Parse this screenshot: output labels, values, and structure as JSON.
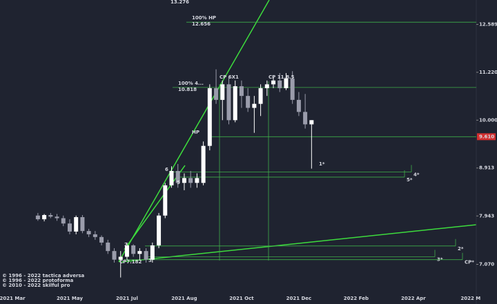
{
  "chart_data": {
    "type": "candlestick",
    "log_scale": true,
    "ylim": [
      6.6,
      13.35
    ],
    "yticks": [
      12.589,
      {
        "value": 11.22,
        "label": "11.220"
      },
      {
        "value": 10,
        "label": "10.000"
      },
      8.913,
      7.943,
      {
        "value": 7.07,
        "label": "7.070"
      }
    ],
    "categories": [
      "2021 Mar",
      null,
      null,
      null,
      null,
      null,
      null,
      null,
      null,
      "2021 May",
      null,
      null,
      null,
      null,
      null,
      null,
      null,
      null,
      "2021 Jul",
      null,
      null,
      null,
      null,
      null,
      null,
      null,
      null,
      "2021 Aug",
      null,
      null,
      null,
      null,
      null,
      null,
      null,
      null,
      "2021 Oct",
      null,
      null,
      null,
      null,
      null,
      null,
      null,
      null,
      "2021 Dec",
      null,
      null,
      null,
      null,
      null,
      null,
      null,
      null,
      "2022 Feb",
      null,
      null,
      null,
      null,
      null,
      null,
      null,
      null,
      "2022 Apr",
      null,
      null,
      null,
      null,
      null,
      null,
      null,
      null,
      "2022 M",
      null
    ],
    "open": [
      null,
      null,
      null,
      null,
      7.95,
      7.88,
      7.96,
      7.93,
      7.9,
      7.8,
      7.65,
      7.92,
      7.66,
      7.6,
      7.55,
      7.45,
      7.3,
      7.15,
      7.2,
      7.4,
      7.25,
      7.3,
      7.15,
      7.4,
      7.95,
      8.55,
      8.85,
      8.6,
      8.7,
      8.6,
      8.6,
      9.4,
      10.8,
      10.5,
      10.9,
      10.0,
      10.85,
      10.6,
      10.3,
      10.4,
      10.8,
      10.9,
      11.0,
      10.8,
      11.05,
      10.5,
      10.2,
      9.9,
      null,
      null,
      null,
      null,
      null,
      null,
      null,
      null,
      null,
      null,
      null,
      null,
      null,
      null,
      null,
      null,
      null,
      null,
      null,
      null,
      null,
      null,
      null,
      null,
      null,
      null
    ],
    "high": [
      null,
      null,
      null,
      null,
      8.0,
      7.98,
      8.0,
      7.98,
      7.95,
      7.88,
      7.95,
      7.96,
      7.7,
      7.66,
      7.58,
      7.5,
      7.35,
      7.3,
      7.45,
      7.42,
      7.35,
      7.35,
      7.45,
      8.0,
      8.6,
      8.95,
      9.0,
      8.8,
      8.85,
      8.8,
      9.5,
      10.9,
      11.3,
      11.0,
      11.1,
      11.0,
      11.0,
      10.8,
      10.6,
      10.9,
      11.0,
      11.1,
      11.2,
      11.2,
      11.25,
      10.7,
      10.65,
      10.0,
      null,
      null,
      null,
      null,
      null,
      null,
      null,
      null,
      null,
      null,
      null,
      null,
      null,
      null,
      null,
      null,
      null,
      null,
      null,
      null,
      null,
      null,
      null,
      null,
      null,
      null
    ],
    "low": [
      null,
      null,
      null,
      null,
      7.85,
      7.84,
      7.9,
      7.85,
      7.75,
      7.6,
      7.6,
      7.62,
      7.55,
      7.5,
      7.4,
      7.25,
      7.1,
      6.85,
      7.15,
      7.2,
      7.15,
      7.1,
      7.1,
      7.35,
      7.9,
      8.5,
      8.5,
      8.45,
      8.5,
      8.5,
      8.55,
      9.3,
      10.4,
      10.0,
      9.9,
      9.95,
      10.3,
      10.2,
      9.7,
      10.1,
      10.6,
      10.8,
      10.7,
      10.75,
      10.4,
      10.1,
      9.8,
      8.9,
      null,
      null,
      null,
      null,
      null,
      null,
      null,
      null,
      null,
      null,
      null,
      null,
      null,
      null,
      null,
      null,
      null,
      null,
      null,
      null,
      null,
      null,
      null,
      null,
      null,
      null
    ],
    "close": [
      null,
      null,
      null,
      null,
      7.88,
      7.96,
      7.93,
      7.9,
      7.8,
      7.65,
      7.92,
      7.66,
      7.6,
      7.55,
      7.45,
      7.3,
      7.15,
      7.2,
      7.4,
      7.25,
      7.3,
      7.15,
      7.4,
      7.95,
      8.55,
      8.85,
      8.6,
      8.7,
      8.6,
      8.7,
      9.4,
      10.8,
      10.5,
      10.9,
      10.0,
      10.85,
      10.6,
      10.3,
      10.4,
      10.8,
      10.9,
      11.0,
      10.8,
      11.05,
      10.5,
      10.2,
      9.9,
      10.0,
      null,
      null,
      null,
      null,
      null,
      null,
      null,
      null,
      null,
      null,
      null,
      null,
      null,
      null,
      null,
      null,
      null,
      null,
      null,
      null,
      null,
      null,
      null,
      null,
      null,
      null
    ],
    "up_color": "#ffffff",
    "down_color": "#9a9cab",
    "level_color": "#3fae49",
    "levels": [
      {
        "value": 12.656,
        "name": "100% HP"
      },
      {
        "value": 10.818,
        "name": "100% 4..."
      },
      {
        "value": 9.61,
        "label": "9.610"
      },
      {
        "value": 8.83,
        "name": "4*"
      },
      {
        "value": 8.72,
        "name": "5*"
      },
      {
        "value": 7.39,
        "name": "2*"
      },
      {
        "value": 7.2,
        "name": "3*"
      },
      {
        "value": 7.15,
        "name": "CP*"
      }
    ],
    "annotations": [
      "13.276",
      "HP",
      "CP 6X1",
      "CP 11.8.5",
      "CP7.182",
      "1*",
      "2",
      "3",
      "5",
      "6"
    ],
    "footer": [
      "© 1996 - 2022 tactica adversa",
      "© 1996 - 2022 protoforma",
      "© 2010 - 2022 skilful pro"
    ]
  }
}
